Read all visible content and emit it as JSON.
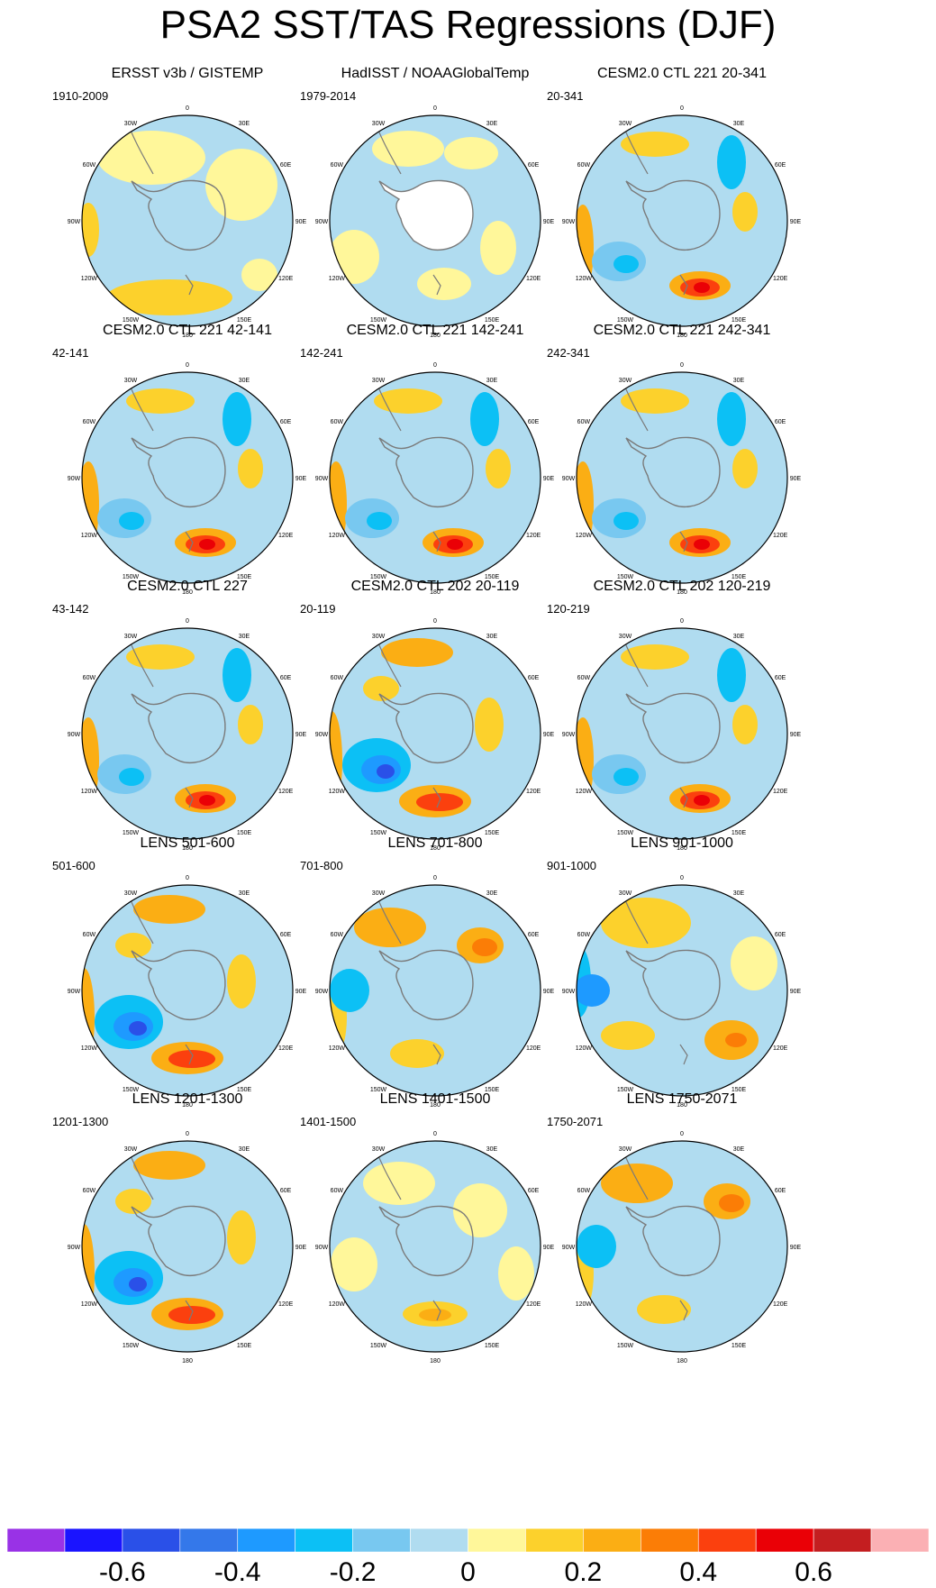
{
  "title": "PSA2 SST/TAS Regressions (DJF)",
  "colors": {
    "ocean_neutral_neg": "#b0dcf0",
    "neutral_pos": "#fff79a",
    "coast": "#7a7a7a"
  },
  "colorbar": {
    "colors": [
      "#9932e6",
      "#1a14ff",
      "#2a50e8",
      "#3478ea",
      "#1e9aff",
      "#0cc0f5",
      "#78c8f0",
      "#b0dcf0",
      "#fff79a",
      "#fcd12c",
      "#fbae14",
      "#fb7d06",
      "#fb400e",
      "#ea0006",
      "#c41e20",
      "#fbb0b4"
    ],
    "tick_labels": [
      "-0.6",
      "-0.4",
      "-0.2",
      "0",
      "0.2",
      "0.4",
      "0.6"
    ],
    "tick_values": [
      -0.6,
      -0.4,
      -0.2,
      0,
      0.2,
      0.4,
      0.6
    ]
  },
  "longitude_labels": [
    "0",
    "30E",
    "60E",
    "90E",
    "120E",
    "150E",
    "180",
    "150W",
    "120W",
    "90W",
    "60W",
    "30W"
  ],
  "panels": [
    {
      "title": "ERSST v3b / GISTEMP",
      "period": "1910-2009",
      "pattern": "weak"
    },
    {
      "title": "HadISST / NOAAGlobalTemp",
      "period": "1979-2014",
      "pattern": "obs"
    },
    {
      "title": "CESM2.0 CTL 221 20-341",
      "period": "20-341",
      "pattern": "model"
    },
    {
      "title": "CESM2.0 CTL 221 42-141",
      "period": "42-141",
      "pattern": "model"
    },
    {
      "title": "CESM2.0 CTL 221 142-241",
      "period": "142-241",
      "pattern": "model"
    },
    {
      "title": "CESM2.0 CTL 221 242-341",
      "period": "242-341",
      "pattern": "model"
    },
    {
      "title": "CESM2.0 CTL 227",
      "period": "43-142",
      "pattern": "model"
    },
    {
      "title": "CESM2.0 CTL 202 20-119",
      "period": "20-119",
      "pattern": "strong"
    },
    {
      "title": "CESM2.0 CTL 202 120-219",
      "period": "120-219",
      "pattern": "model"
    },
    {
      "title": "LENS 501-600",
      "period": "501-600",
      "pattern": "strong"
    },
    {
      "title": "LENS 701-800",
      "period": "701-800",
      "pattern": "lens"
    },
    {
      "title": "LENS 901-1000",
      "period": "901-1000",
      "pattern": "shifted"
    },
    {
      "title": "LENS 1201-1300",
      "period": "1201-1300",
      "pattern": "strong"
    },
    {
      "title": "LENS 1401-1500",
      "period": "1401-1500",
      "pattern": "weak2"
    },
    {
      "title": "LENS 1750-2071",
      "period": "1750-2071",
      "pattern": "lens"
    }
  ]
}
